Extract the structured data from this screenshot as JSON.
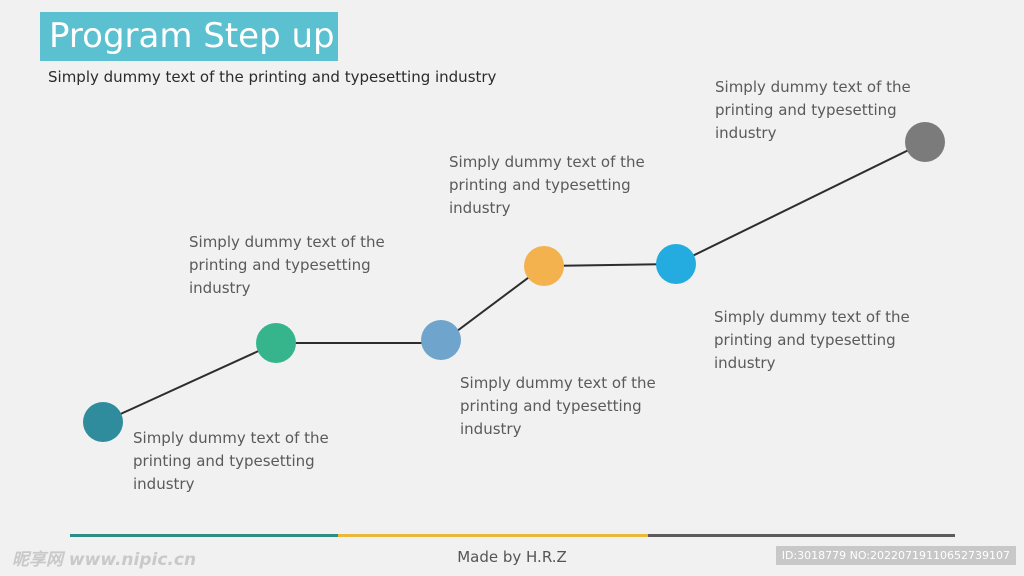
{
  "header": {
    "title": "Program Step up",
    "subtitle": "Simply dummy text of the printing and typesetting industry"
  },
  "steps": [
    {
      "text": "Simply dummy text of the printing and typesetting industry",
      "color": "#2e8c9c"
    },
    {
      "text": "Simply dummy text of the printing and typesetting industry",
      "color": "#36b58c"
    },
    {
      "text": "Simply dummy text of the printing and typesetting industry",
      "color": "#6fa5cc"
    },
    {
      "text": "Simply dummy text of the printing and typesetting industry",
      "color": "#f4b24f"
    },
    {
      "text": "Simply dummy text of the printing and typesetting industry",
      "color": "#24ace0"
    },
    {
      "text": "Simply dummy text of the printing and typesetting industry",
      "color": "#7b7b7b"
    }
  ],
  "footer": {
    "credit": "Made by H.R.Z",
    "bar_colors": [
      "#2e8c86",
      "#eab93c",
      "#5c5c5c"
    ]
  },
  "watermark": {
    "left": "昵享网 www.nipic.cn",
    "right": "ID:3018779 NO:20220719110652739107"
  },
  "colors": {
    "title_bg": "#5bc0cf",
    "connector": "#2d2d2d",
    "background": "#f1f1f1"
  }
}
